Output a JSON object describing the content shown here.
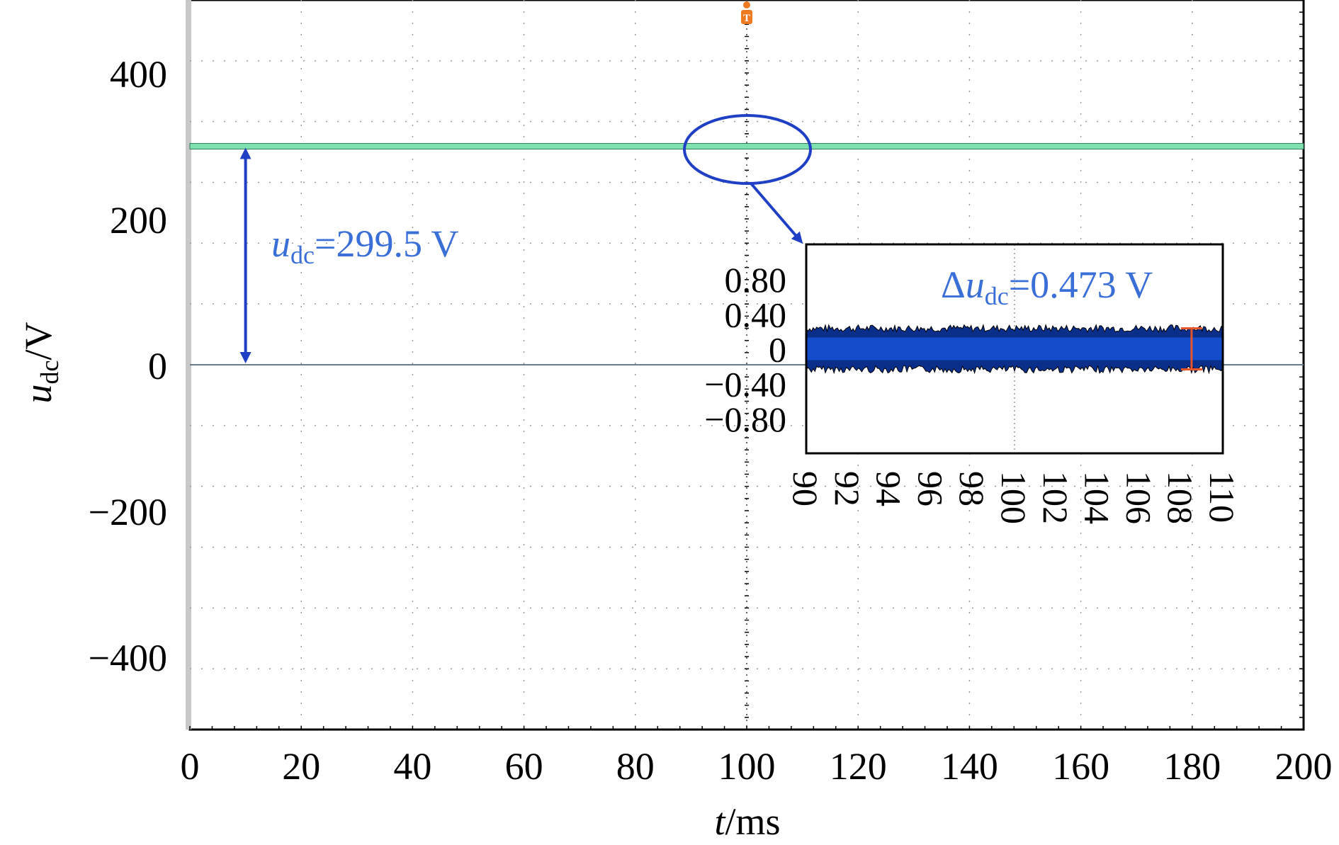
{
  "chart_data": [
    {
      "type": "line",
      "xlabel": {
        "var": "t",
        "unit": "/ms"
      },
      "ylabel": {
        "var": "u",
        "sub": "dc",
        "unit": "/V"
      },
      "xlim": [
        0,
        200
      ],
      "ylim": [
        -500,
        500
      ],
      "xticks": [
        0,
        20,
        40,
        60,
        80,
        100,
        120,
        140,
        160,
        180,
        200
      ],
      "yticks": [
        -400,
        -200,
        0,
        200,
        400
      ],
      "ytick_labels": [
        "−400",
        "−200",
        "0",
        "200",
        "400"
      ],
      "grid": true,
      "series": [
        {
          "x": [
            0,
            200
          ],
          "values": [
            299.5,
            299.5
          ],
          "color": "#7fe0b0"
        }
      ],
      "trigger_marker": {
        "label": "T",
        "x": 100,
        "color": "#f07a22"
      },
      "annotation": {
        "var": "u",
        "sub": "dc",
        "text": "=299.5 V",
        "color": "#3a6fd8",
        "arrow_from": 0,
        "arrow_to": 299.5,
        "arrow_x": 10
      }
    },
    {
      "type": "area",
      "xlim": [
        90,
        110
      ],
      "ylim": [
        -1.2,
        1.2
      ],
      "xticks": [
        90,
        92,
        94,
        96,
        98,
        100,
        102,
        104,
        106,
        108,
        110
      ],
      "yticks": [
        0.8,
        0.4,
        0,
        -0.4,
        -0.8
      ],
      "ytick_labels": [
        "0.80",
        "0.40",
        "0",
        "−0.40",
        "−0.80"
      ],
      "series": [
        {
          "x": [
            90,
            110
          ],
          "upper": 0.236,
          "lower": -0.236,
          "color": "#0a2f8a"
        }
      ],
      "annotation": {
        "prefix": "Δ",
        "var": "u",
        "sub": "dc",
        "text": "=0.473 V",
        "color": "#3a6fd8"
      },
      "range_marker": {
        "x": 108.5,
        "low": -0.236,
        "high": 0.236,
        "color": "#e8552a"
      }
    }
  ]
}
